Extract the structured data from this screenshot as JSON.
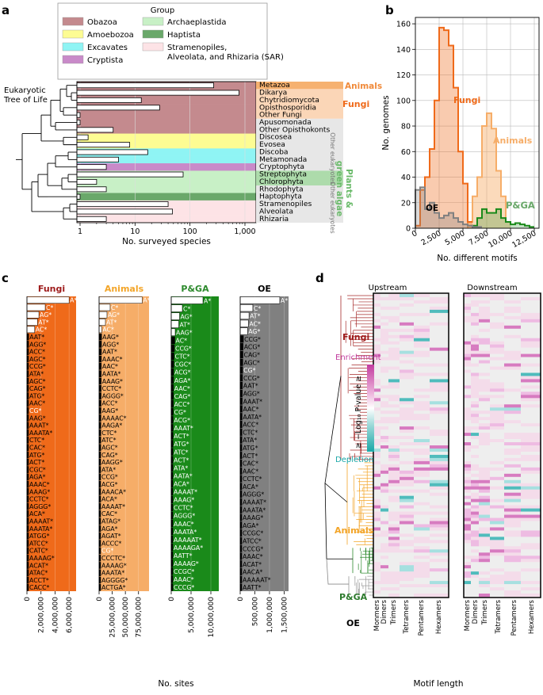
{
  "panel_labels": {
    "a": "a",
    "b": "b",
    "c": "c",
    "d": "d"
  },
  "colors": {
    "obazoa": "#c48a8e",
    "amoebozoa": "#fdfc93",
    "excavates": "#8ff4f4",
    "cryptista": "#c98ac9",
    "archaeplastida": "#c8f0c6",
    "haptista": "#6aa86a",
    "sar": "#fde3e6",
    "fungi": "#ef6a1a",
    "animals": "#f6ad68",
    "pga": "#1a8a1a",
    "oe": "#808080",
    "fungi_text": "#9e1b1b",
    "animals_text": "#f3a529",
    "pga_text": "#2d7a2d",
    "enrich": "#c23d9f",
    "deplete": "#1aa7a7"
  },
  "panel_a": {
    "tree_title": "Eukaryotic\nTree of Life",
    "legend_title": "Group",
    "legend": [
      {
        "label": "Obazoa",
        "color": "#c48a8e"
      },
      {
        "label": "Amoebozoa",
        "color": "#fdfc93"
      },
      {
        "label": "Excavates",
        "color": "#8ff4f4"
      },
      {
        "label": "Cryptista",
        "color": "#c98ac9"
      },
      {
        "label": "Archaeplastida",
        "color": "#c8f0c6"
      },
      {
        "label": "Haptista",
        "color": "#6aa86a"
      },
      {
        "label": "Stramenopiles,\nAlveolata, and Rhizaria (SAR)",
        "color": "#fde3e6"
      }
    ],
    "taxa": [
      {
        "name": "Metazoa",
        "count": 270,
        "group": "obazoa"
      },
      {
        "name": "Dikarya",
        "count": 780,
        "group": "obazoa"
      },
      {
        "name": "Chytridiomycota",
        "count": 13,
        "group": "obazoa"
      },
      {
        "name": "Opisthosporidia",
        "count": 28,
        "group": "obazoa"
      },
      {
        "name": "Other Fungi",
        "count": 1,
        "group": "obazoa"
      },
      {
        "name": "Apusomonada",
        "count": 1,
        "group": "obazoa"
      },
      {
        "name": "Other Opisthokonts",
        "count": 4,
        "group": "obazoa"
      },
      {
        "name": "Discosea",
        "count": 1.4,
        "group": "amoebozoa"
      },
      {
        "name": "Evosea",
        "count": 8,
        "group": "amoebozoa"
      },
      {
        "name": "Discoba",
        "count": 17,
        "group": "excavates"
      },
      {
        "name": "Metamonada",
        "count": 5,
        "group": "excavates"
      },
      {
        "name": "Cryptophyta",
        "count": 3,
        "group": "cryptista"
      },
      {
        "name": "Streptophyta",
        "count": 75,
        "group": "archaeplastida"
      },
      {
        "name": "Chlorophyta",
        "count": 2,
        "group": "archaeplastida"
      },
      {
        "name": "Rhodophyta",
        "count": 3,
        "group": "archaeplastida"
      },
      {
        "name": "Haptophyta",
        "count": 1,
        "group": "haptista"
      },
      {
        "name": "Stramenopiles",
        "count": 40,
        "group": "sar"
      },
      {
        "name": "Alveolata",
        "count": 48,
        "group": "sar"
      },
      {
        "name": "Rhizaria",
        "count": 3,
        "group": "sar"
      }
    ],
    "xticks": [
      "1",
      "10",
      "100",
      "1,000"
    ],
    "xlabel": "No. surveyed species",
    "side_labels": {
      "animals": "Animals",
      "fungi": "Fungi",
      "other_euk": "Other\neukaryotes",
      "pga": "Plants &\ngreen algae",
      "other_euk2": "Other\neukaryotes"
    }
  },
  "panel_b": {
    "ylabel": "No. genomes",
    "xlabel": "No. different motifs",
    "yticks": [
      "0",
      "20",
      "40",
      "60",
      "80",
      "100",
      "120",
      "140",
      "160"
    ],
    "xticks": [
      "0",
      "2,500",
      "5,000",
      "7,500",
      "10,000",
      "12,500"
    ],
    "labels": {
      "fungi": "Fungi",
      "animals": "Animals",
      "pga": "P&GA",
      "oe": "OE"
    }
  },
  "chart_data": [
    {
      "type": "bar",
      "title": "",
      "xlabel": "No. surveyed species",
      "xscale": "log",
      "categories": [
        "Metazoa",
        "Dikarya",
        "Chytridiomycota",
        "Opisthosporidia",
        "Other Fungi",
        "Apusomonada",
        "Other Opisthokonts",
        "Discosea",
        "Evosea",
        "Discoba",
        "Metamonada",
        "Cryptophyta",
        "Streptophyta",
        "Chlorophyta",
        "Rhodophyta",
        "Haptophyta",
        "Stramenopiles",
        "Alveolata",
        "Rhizaria"
      ],
      "values": [
        270,
        780,
        13,
        28,
        1,
        1,
        4,
        1.4,
        8,
        17,
        5,
        3,
        75,
        2,
        3,
        1,
        40,
        48,
        3
      ],
      "xlim": [
        1,
        1000
      ]
    },
    {
      "type": "area",
      "xlabel": "No. different motifs",
      "ylabel": "No. genomes",
      "xlim": [
        0,
        13000
      ],
      "ylim": [
        0,
        165
      ],
      "grid": true,
      "series": [
        {
          "name": "Fungi",
          "x": [
            0,
            500,
            1000,
            1500,
            2000,
            2500,
            3000,
            3500,
            4000,
            4500,
            5000,
            5500
          ],
          "values": [
            2,
            30,
            40,
            62,
            100,
            157,
            155,
            143,
            110,
            60,
            35,
            5
          ]
        },
        {
          "name": "Animals",
          "x": [
            5500,
            6000,
            6500,
            7000,
            7500,
            8000,
            8500,
            9000,
            9500
          ],
          "values": [
            5,
            25,
            40,
            80,
            90,
            78,
            45,
            25,
            5
          ]
        },
        {
          "name": "P&GA",
          "x": [
            6000,
            6500,
            7000,
            7500,
            8000,
            8500,
            9000,
            9500,
            10000,
            10500,
            11000,
            11500,
            12000
          ],
          "values": [
            2,
            8,
            15,
            12,
            12,
            15,
            8,
            5,
            3,
            4,
            3,
            2,
            1
          ]
        },
        {
          "name": "OE",
          "x": [
            0,
            500,
            1000,
            1500,
            2000,
            2500,
            3000,
            3500,
            4000,
            4500,
            5000,
            5500,
            6000,
            6500
          ],
          "values": [
            30,
            32,
            15,
            20,
            12,
            8,
            10,
            12,
            8,
            5,
            3,
            2,
            1,
            1
          ]
        }
      ]
    },
    {
      "type": "bar",
      "title": "Fungi",
      "xlabel": "No. sites",
      "xticks": [
        "0",
        "2,000,000",
        "4,000,000",
        "6,000,000"
      ],
      "xlim": [
        0,
        7000000
      ],
      "categories": [
        "A*",
        "C*",
        "AG*",
        "AT*",
        "AC*",
        "AAT*",
        "AGG*",
        "ACC*",
        "AGC*",
        "CCG*",
        "ATA*",
        "AGC*",
        "CAG*",
        "ATG*",
        "AAC*",
        "CG*",
        "AAG*",
        "AAAT*",
        "AAATA*",
        "CTC*",
        "CAC*",
        "ATG*",
        "ACT*",
        "CGC*",
        "AGA*",
        "AAAC*",
        "AAAG*",
        "CCTC*",
        "AGGG*",
        "ACA*",
        "AAAAT*",
        "AAATA*",
        "ATGG*",
        "ATCC*",
        "CATC*",
        "AAAAG*",
        "ACAT*",
        "ATAC*",
        "ACCT*",
        "CACC*"
      ],
      "values": [
        6000000,
        2600000,
        1700000,
        1500000,
        1100000,
        250000,
        240000,
        230000,
        220000,
        220000,
        210000,
        210000,
        200000,
        200000,
        200000,
        180000,
        180000,
        170000,
        170000,
        160000,
        160000,
        150000,
        150000,
        150000,
        140000,
        140000,
        140000,
        130000,
        130000,
        130000,
        120000,
        120000,
        120000,
        110000,
        110000,
        110000,
        100000,
        100000,
        100000,
        100000
      ]
    },
    {
      "type": "bar",
      "title": "Animals",
      "xlabel": "No. sites",
      "xticks": [
        "0",
        "25,000,000",
        "50,000,000",
        "75,000,000"
      ],
      "xlim": [
        0,
        95000000
      ],
      "categories": [
        "A*",
        "C*",
        "AG*",
        "AT*",
        "AC*",
        "AAG*",
        "AGG*",
        "AAT*",
        "AAAC*",
        "AAC*",
        "AATA*",
        "AAAG*",
        "CCTC*",
        "AGGG*",
        "ACC*",
        "AAG*",
        "AAAAC*",
        "AAGA*",
        "CTC*",
        "ATC*",
        "AGC*",
        "CAG*",
        "AAGG*",
        "ATA*",
        "CCG*",
        "ACG*",
        "AAACA*",
        "ACA*",
        "AAAAT*",
        "CAC*",
        "ATAG*",
        "AGA*",
        "AGAT*",
        "ACCC*",
        "CG*",
        "CCCTC*",
        "AAAAG*",
        "AAATA*",
        "AGGGG*",
        "ACTGA*"
      ],
      "values": [
        82000000,
        21000000,
        15000000,
        12000000,
        5000000,
        4800000,
        4600000,
        4500000,
        4400000,
        4300000,
        4200000,
        4100000,
        4000000,
        3900000,
        3800000,
        3700000,
        3600000,
        3500000,
        3400000,
        3300000,
        3200000,
        3100000,
        3000000,
        2900000,
        2800000,
        2700000,
        2600000,
        2500000,
        2400000,
        2300000,
        2200000,
        2100000,
        2000000,
        2000000,
        1900000,
        1800000,
        1700000,
        1600000,
        1500000,
        1400000
      ]
    },
    {
      "type": "bar",
      "title": "P&GA",
      "xlabel": "No. sites",
      "xticks": [
        "0",
        "5,000,000",
        "10,000,000"
      ],
      "xlim": [
        0,
        12000000
      ],
      "categories": [
        "A*",
        "C*",
        "AG*",
        "AT*",
        "AAG*",
        "AC*",
        "CCG*",
        "CTC*",
        "CGC*",
        "ACG*",
        "AGA*",
        "AAC*",
        "CAG*",
        "ACC*",
        "CG*",
        "ACG*",
        "AAAT*",
        "ACT*",
        "ATG*",
        "ATC*",
        "ACT*",
        "ATA*",
        "AATA*",
        "ACA*",
        "AAAAT*",
        "AAAG*",
        "CCTC*",
        "AGGG*",
        "AAAC*",
        "AAATA*",
        "AAAAAT*",
        "AAAAGA*",
        "AATT*",
        "AAAAG*",
        "CCGC*",
        "AAAC*",
        "CCCG*"
      ],
      "values": [
        8000000,
        2800000,
        2100000,
        1900000,
        1000000,
        900000,
        800000,
        700000,
        650000,
        600000,
        580000,
        560000,
        540000,
        520000,
        500000,
        480000,
        470000,
        460000,
        450000,
        440000,
        430000,
        420000,
        410000,
        400000,
        390000,
        380000,
        370000,
        360000,
        350000,
        340000,
        330000,
        320000,
        310000,
        300000,
        290000,
        280000,
        270000
      ]
    },
    {
      "type": "bar",
      "title": "OE",
      "xlabel": "No. sites",
      "xticks": [
        "0",
        "500,000",
        "1,000,000",
        "1,500,000"
      ],
      "xlim": [
        0,
        1650000
      ],
      "categories": [
        "A*",
        "C*",
        "AT*",
        "AC*",
        "AG*",
        "CCG*",
        "ACG*",
        "CAG*",
        "AGC*",
        "CG*",
        "CCG*",
        "AAT*",
        "AGG*",
        "AAAT*",
        "AAC*",
        "AATA*",
        "ACC*",
        "CTC*",
        "ATA*",
        "ATG*",
        "ACT*",
        "CAC*",
        "AAC*",
        "CCTC*",
        "ACA*",
        "AGGG*",
        "AAAAT*",
        "AAATA*",
        "AAAG*",
        "AGA*",
        "CCGC*",
        "ATCC*",
        "CCCG*",
        "AAAC*",
        "ACAT*",
        "AACA*",
        "AAAAAT*",
        "AATT*"
      ],
      "values": [
        1350000,
        430000,
        300000,
        280000,
        250000,
        110000,
        100000,
        95000,
        90000,
        85000,
        80000,
        75000,
        72000,
        70000,
        68000,
        65000,
        62000,
        60000,
        58000,
        56000,
        55000,
        54000,
        52000,
        50000,
        48000,
        47000,
        46000,
        45000,
        44000,
        43000,
        42000,
        41000,
        40000,
        39000,
        38000,
        37000,
        36000,
        35000
      ]
    },
    {
      "type": "heatmap",
      "title": "Upstream",
      "xlabel": "Motif length",
      "categories": [
        "Monmers",
        "Dimers",
        "Trimers",
        "Tetramers",
        "Pentamers",
        "Hexamers"
      ]
    },
    {
      "type": "heatmap",
      "title": "Downstream",
      "xlabel": "Motif length",
      "categories": [
        "Monmers",
        "Dimers",
        "Trimers",
        "Tetramers",
        "Pentamers",
        "Hexamers"
      ]
    }
  ],
  "panel_c": {
    "xlabel": "No. sites"
  },
  "panel_d": {
    "up_title": "Upstream",
    "down_title": "Downstream",
    "xlabel": "Motif length",
    "cols": [
      "Monmers",
      "Dimers",
      "Trimers",
      "Tetramers",
      "Pentamers",
      "Hexamers"
    ],
    "legend_enrich": "Enrichment",
    "legend_ylabel": "≥ −Log₁₀ P-value ≥",
    "legend_deplete": "Depletion",
    "groups": {
      "fungi": "Fungi",
      "animals": "Animals",
      "pga": "P&GA",
      "oe": "OE"
    }
  }
}
